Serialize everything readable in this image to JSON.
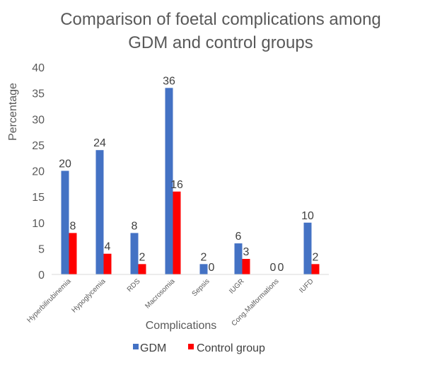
{
  "chart_data": {
    "type": "bar",
    "title": "Comparison of foetal complications among GDM and control groups",
    "title_lines": [
      "Comparison of foetal complications among",
      "GDM and control groups"
    ],
    "xlabel": "Complications",
    "ylabel": "Percentage",
    "ylim": [
      0,
      40
    ],
    "yticks": [
      0,
      5,
      10,
      15,
      20,
      25,
      30,
      35,
      40
    ],
    "categories": [
      "Hyperbilirubinemia",
      "Hypoglycemia",
      "RDS",
      "Macrosomia",
      "Sepsis",
      "IUGR",
      "Cong.Malformations",
      "IUFD"
    ],
    "series": [
      {
        "name": "GDM",
        "color": "#4472C4",
        "values": [
          20,
          24,
          8,
          36,
          2,
          6,
          0,
          10
        ]
      },
      {
        "name": "Control group",
        "color": "#FF0000",
        "values": [
          8,
          4,
          2,
          16,
          0,
          3,
          0,
          2
        ]
      }
    ],
    "grid": false,
    "data_labels": true,
    "legend_position": "bottom"
  }
}
